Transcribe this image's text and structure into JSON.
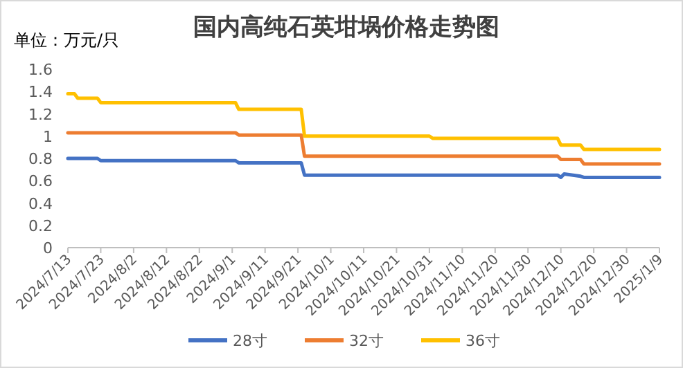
{
  "chart_data": {
    "type": "line",
    "title": "国内高纯石英坩埚价格走势图",
    "ylabel": "单位：万元/只",
    "xlim": [
      "2024-07-13",
      "2025-01-09"
    ],
    "xticks": [
      {
        "value": "2024-07-13",
        "label": "2024/7/13"
      },
      {
        "value": "2024-07-23",
        "label": "2024/7/23"
      },
      {
        "value": "2024-08-02",
        "label": "2024/8/2"
      },
      {
        "value": "2024-08-12",
        "label": "2024/8/12"
      },
      {
        "value": "2024-08-22",
        "label": "2024/8/22"
      },
      {
        "value": "2024-09-01",
        "label": "2024/9/1"
      },
      {
        "value": "2024-09-11",
        "label": "2024/9/11"
      },
      {
        "value": "2024-09-21",
        "label": "2024/9/21"
      },
      {
        "value": "2024-10-01",
        "label": "2024/10/1"
      },
      {
        "value": "2024-10-11",
        "label": "2024/10/11"
      },
      {
        "value": "2024-10-21",
        "label": "2024/10/21"
      },
      {
        "value": "2024-10-31",
        "label": "2024/10/31"
      },
      {
        "value": "2024-11-10",
        "label": "2024/11/10"
      },
      {
        "value": "2024-11-20",
        "label": "2024/11/20"
      },
      {
        "value": "2024-11-30",
        "label": "2024/11/30"
      },
      {
        "value": "2024-12-10",
        "label": "2024/12/10"
      },
      {
        "value": "2024-12-20",
        "label": "2024/12/20"
      },
      {
        "value": "2024-12-30",
        "label": "2024/12/30"
      },
      {
        "value": "2025-01-09",
        "label": "2025/1/9"
      }
    ],
    "ylim": [
      0,
      1.6
    ],
    "yticks": [
      0,
      0.2,
      0.4,
      0.6,
      0.8,
      1,
      1.2,
      1.4,
      1.6
    ],
    "grid": false,
    "legend": "bottom",
    "marker": "none",
    "line_style": "solid",
    "series": [
      {
        "name": "28寸",
        "color": "#4472c4",
        "x": [
          "2024-07-13",
          "2024-07-22",
          "2024-07-23",
          "2024-09-02",
          "2024-09-03",
          "2024-09-22",
          "2024-09-23",
          "2024-12-09",
          "2024-12-10",
          "2024-12-11",
          "2024-12-16",
          "2024-12-17",
          "2025-01-09"
        ],
        "values": [
          0.8,
          0.8,
          0.78,
          0.78,
          0.76,
          0.76,
          0.65,
          0.65,
          0.63,
          0.66,
          0.64,
          0.63,
          0.63
        ]
      },
      {
        "name": "32寸",
        "color": "#ed7d31",
        "x": [
          "2024-07-13",
          "2024-09-02",
          "2024-09-03",
          "2024-09-22",
          "2024-09-23",
          "2024-12-09",
          "2024-12-10",
          "2024-12-16",
          "2024-12-17",
          "2025-01-09"
        ],
        "values": [
          1.03,
          1.03,
          1.01,
          1.01,
          0.82,
          0.82,
          0.79,
          0.79,
          0.75,
          0.75
        ]
      },
      {
        "name": "36寸",
        "color": "#ffc000",
        "x": [
          "2024-07-13",
          "2024-07-15",
          "2024-07-16",
          "2024-07-22",
          "2024-07-23",
          "2024-09-02",
          "2024-09-03",
          "2024-09-22",
          "2024-09-23",
          "2024-10-31",
          "2024-11-01",
          "2024-12-09",
          "2024-12-10",
          "2024-12-16",
          "2024-12-17",
          "2025-01-09"
        ],
        "values": [
          1.38,
          1.38,
          1.34,
          1.34,
          1.3,
          1.3,
          1.24,
          1.24,
          1.0,
          1.0,
          0.98,
          0.98,
          0.92,
          0.92,
          0.88,
          0.88
        ]
      }
    ]
  }
}
